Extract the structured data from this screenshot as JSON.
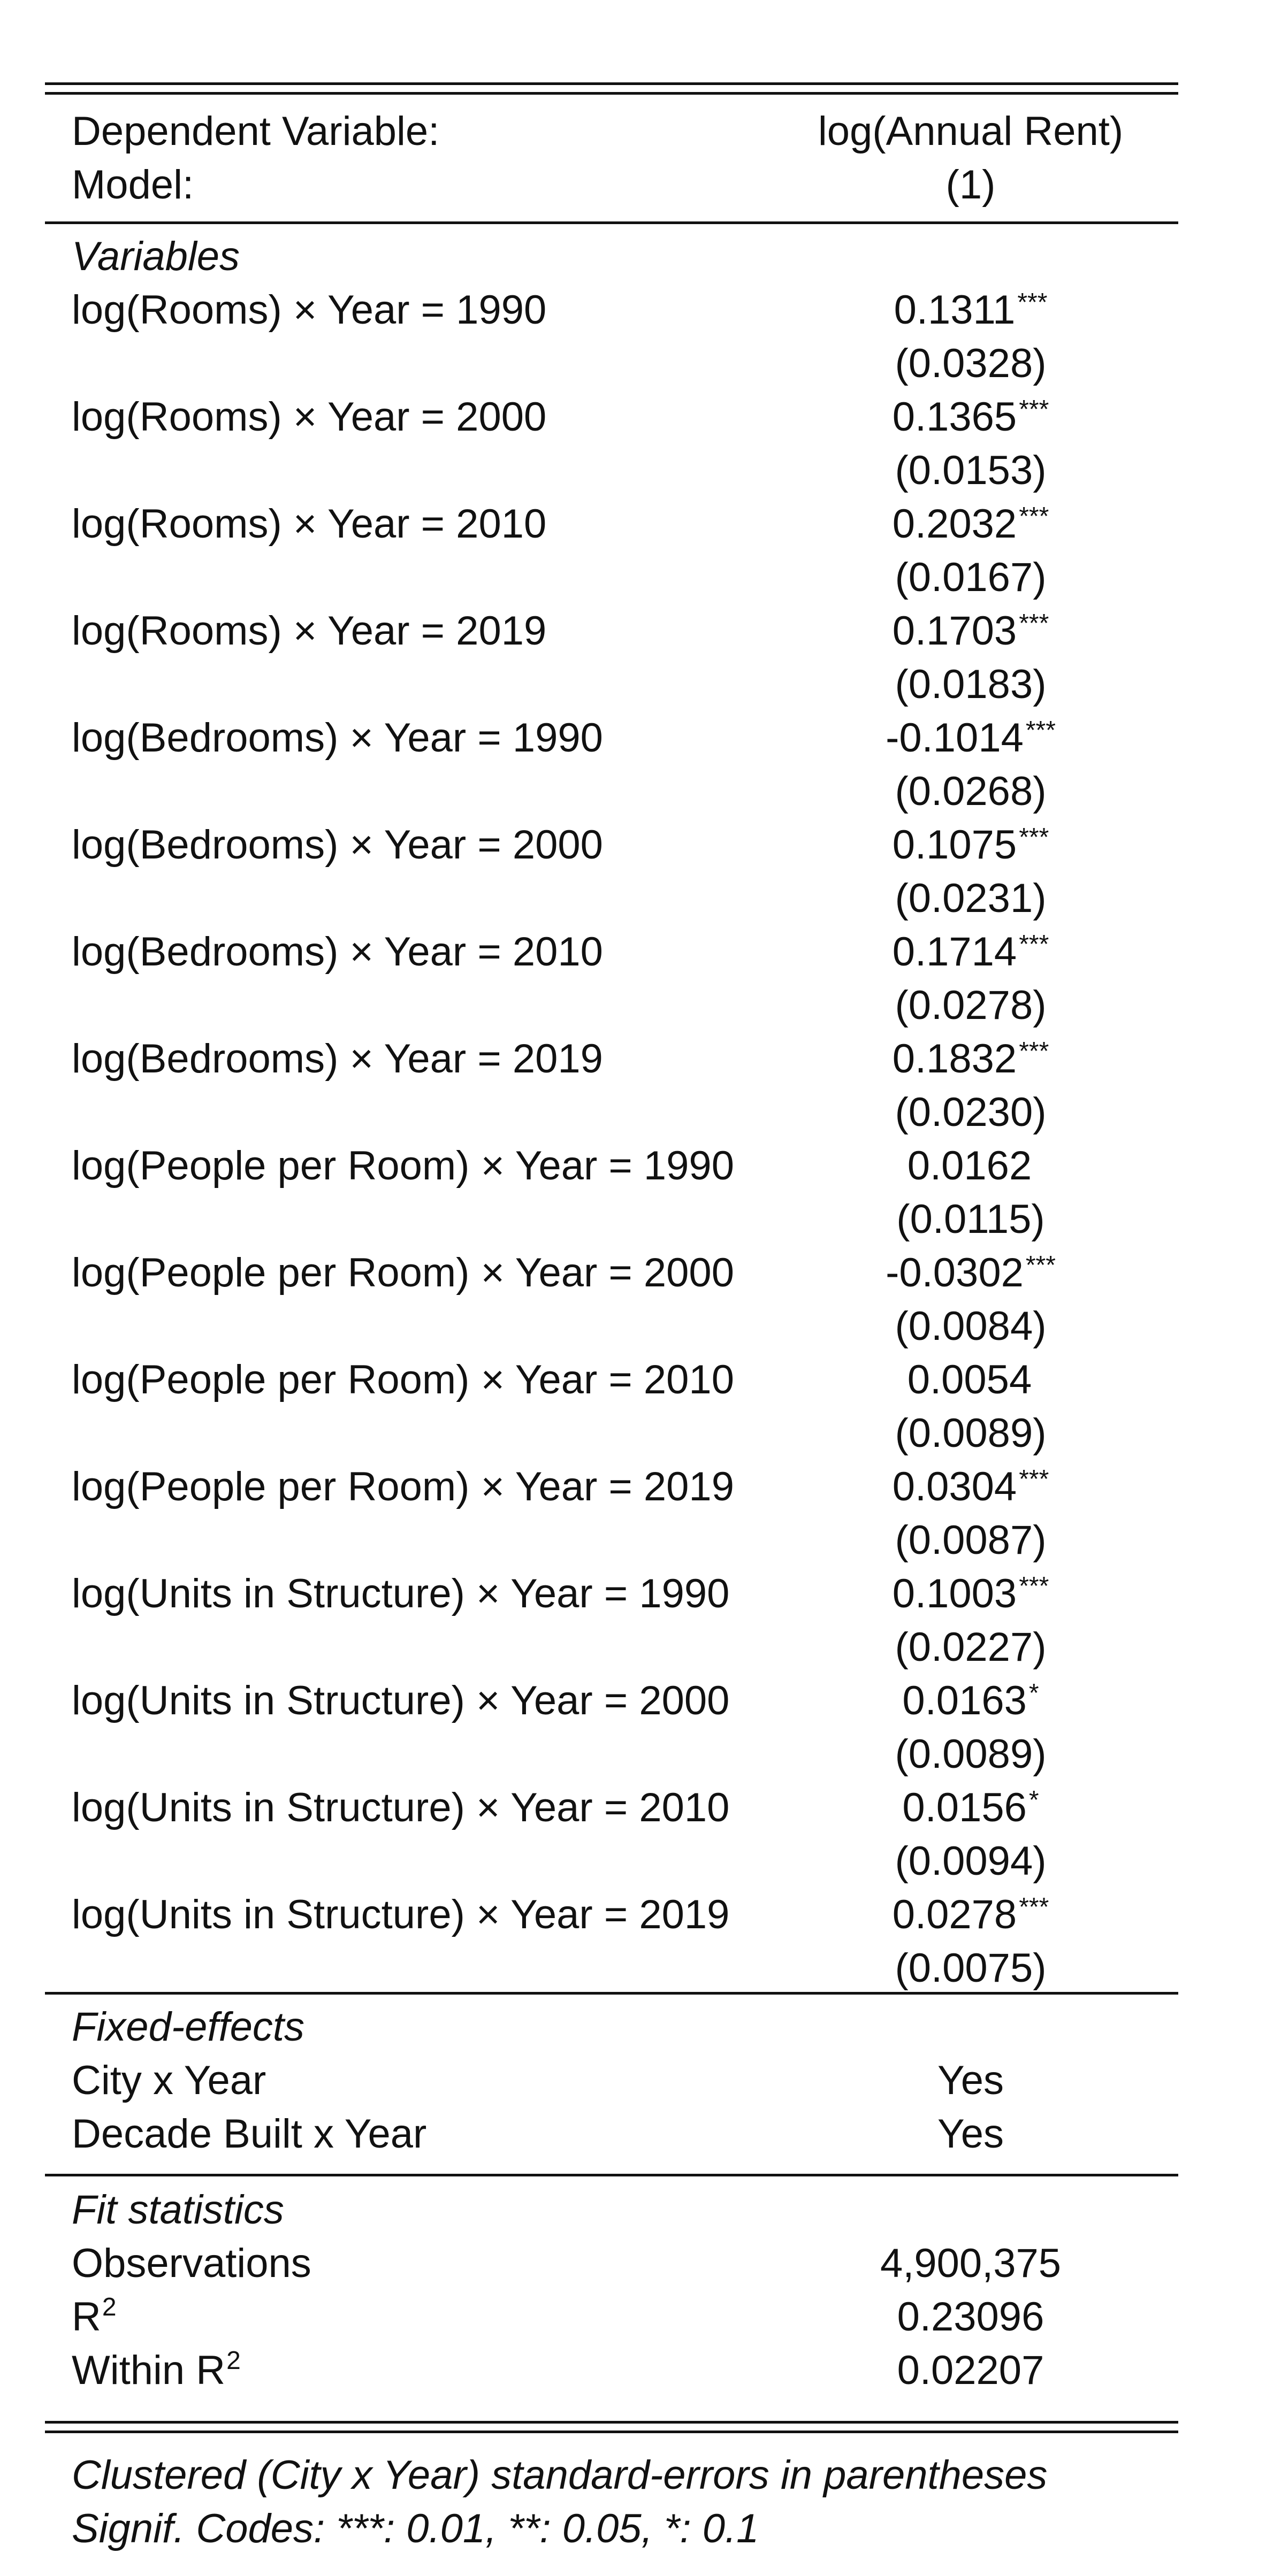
{
  "header": {
    "dep_var_label": "Dependent Variable:",
    "dep_var_value": "log(Annual Rent)",
    "model_label": "Model:",
    "model_value": "(1)"
  },
  "sections": {
    "variables": "Variables",
    "fixed_effects": "Fixed-effects",
    "fit_statistics": "Fit statistics"
  },
  "variables": [
    {
      "label": "log(Rooms) × Year = 1990",
      "coef": "0.1311",
      "stars": "***",
      "se": "(0.0328)"
    },
    {
      "label": "log(Rooms) × Year = 2000",
      "coef": "0.1365",
      "stars": "***",
      "se": "(0.0153)"
    },
    {
      "label": "log(Rooms) × Year = 2010",
      "coef": "0.2032",
      "stars": "***",
      "se": "(0.0167)"
    },
    {
      "label": "log(Rooms) × Year = 2019",
      "coef": "0.1703",
      "stars": "***",
      "se": "(0.0183)"
    },
    {
      "label": "log(Bedrooms) × Year = 1990",
      "coef": "-0.1014",
      "stars": "***",
      "se": "(0.0268)"
    },
    {
      "label": "log(Bedrooms) × Year = 2000",
      "coef": "0.1075",
      "stars": "***",
      "se": "(0.0231)"
    },
    {
      "label": "log(Bedrooms) × Year = 2010",
      "coef": "0.1714",
      "stars": "***",
      "se": "(0.0278)"
    },
    {
      "label": "log(Bedrooms) × Year = 2019",
      "coef": "0.1832",
      "stars": "***",
      "se": "(0.0230)"
    },
    {
      "label": "log(People per Room) × Year = 1990",
      "coef": "0.0162",
      "stars": "",
      "se": "(0.0115)"
    },
    {
      "label": "log(People per Room) × Year = 2000",
      "coef": "-0.0302",
      "stars": "***",
      "se": "(0.0084)"
    },
    {
      "label": "log(People per Room) × Year = 2010",
      "coef": "0.0054",
      "stars": "",
      "se": "(0.0089)"
    },
    {
      "label": "log(People per Room) × Year = 2019",
      "coef": "0.0304",
      "stars": "***",
      "se": "(0.0087)"
    },
    {
      "label": "log(Units in Structure) × Year = 1990",
      "coef": "0.1003",
      "stars": "***",
      "se": "(0.0227)"
    },
    {
      "label": "log(Units in Structure) × Year = 2000",
      "coef": "0.0163",
      "stars": "*",
      "se": "(0.0089)"
    },
    {
      "label": "log(Units in Structure) × Year = 2010",
      "coef": "0.0156",
      "stars": "*",
      "se": "(0.0094)"
    },
    {
      "label": "log(Units in Structure) × Year = 2019",
      "coef": "0.0278",
      "stars": "***",
      "se": "(0.0075)"
    }
  ],
  "fixed_effects": [
    {
      "label": "City x Year",
      "value": "Yes"
    },
    {
      "label": "Decade Built x Year",
      "value": "Yes"
    }
  ],
  "fit_statistics": {
    "observations_label": "Observations",
    "observations_value": "4,900,375",
    "r2_label": "R",
    "r2_sup": "2",
    "r2_value": "0.23096",
    "within_r2_label": "Within R",
    "within_r2_sup": "2",
    "within_r2_value": "0.02207"
  },
  "notes": {
    "line1": "Clustered (City x Year) standard-errors in parentheses",
    "line2": "Signif. Codes: ***: 0.01, **: 0.05, *: 0.1"
  }
}
